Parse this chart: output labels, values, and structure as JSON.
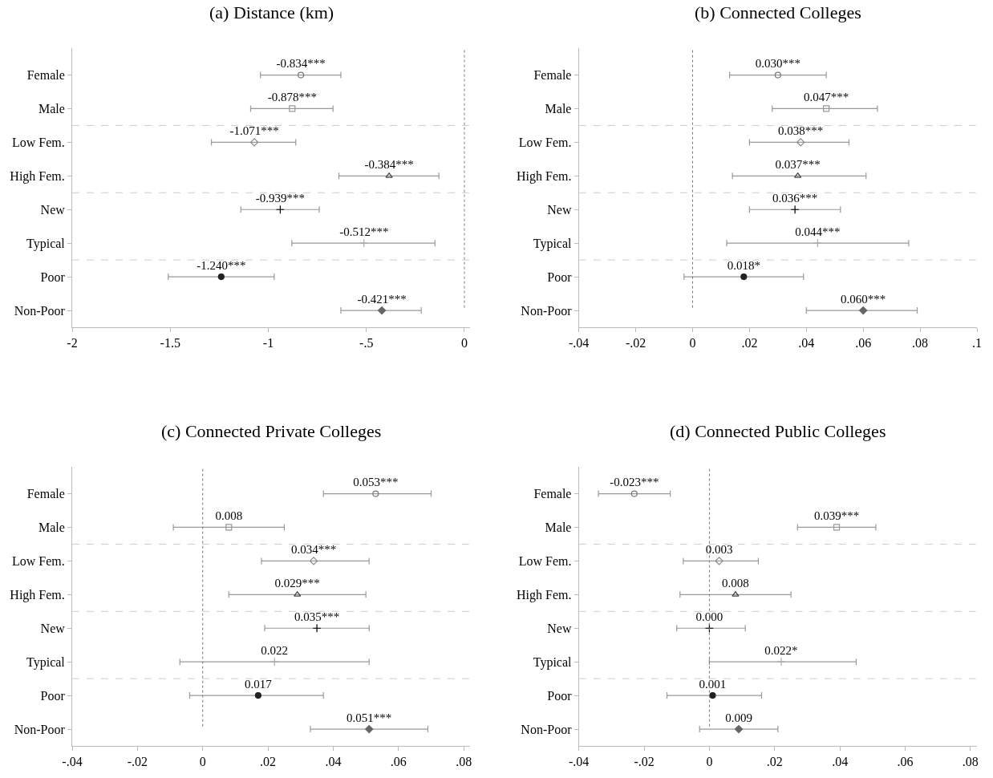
{
  "chart_data": [
    {
      "type": "scatter",
      "orientation": "horizontal",
      "title": "(a) Distance (km)",
      "categories": [
        "Female",
        "Male",
        "Low Fem.",
        "High Fem.",
        "New",
        "Typical",
        "Poor",
        "Non-Poor"
      ],
      "series": [
        {
          "colors": [
            "#777777",
            "#999999",
            "#888888",
            "#444444",
            "#000000",
            "#aaaaaa",
            "#222222",
            "#666666"
          ],
          "values": [
            -0.834,
            -0.878,
            -1.071,
            -0.384,
            -0.939,
            -0.512,
            -1.24,
            -0.421
          ],
          "errors": [
            [
              -1.04,
              -0.63
            ],
            [
              -1.09,
              -0.67
            ],
            [
              -1.29,
              -0.86
            ],
            [
              -0.64,
              -0.13
            ],
            [
              -1.14,
              -0.74
            ],
            [
              -0.88,
              -0.15
            ],
            [
              -1.51,
              -0.97
            ],
            [
              -0.63,
              -0.22
            ]
          ],
          "value_labels": [
            "-0.834***",
            "-0.878***",
            "-1.071***",
            "-0.384***",
            "-0.939***",
            "-0.512***",
            "-1.240***",
            "-0.421***"
          ]
        }
      ],
      "marker": [
        "circle",
        "square",
        "diamond",
        "triangle",
        "cross",
        "cross",
        "circle",
        "diamond"
      ],
      "xlim": [
        -2,
        0.03
      ],
      "xticks": [
        -2,
        -1.5,
        -1,
        {
          "value": -0.5,
          "label": "-.5"
        },
        0
      ],
      "ref_lines": [
        {
          "axis": "x",
          "value": 0,
          "color": "#777777",
          "line_style": "dotted"
        }
      ]
    },
    {
      "type": "scatter",
      "orientation": "horizontal",
      "title": "(b) Connected Colleges",
      "categories": [
        "Female",
        "Male",
        "Low Fem.",
        "High Fem.",
        "New",
        "Typical",
        "Poor",
        "Non-Poor"
      ],
      "series": [
        {
          "colors": [
            "#777777",
            "#999999",
            "#888888",
            "#444444",
            "#000000",
            "#aaaaaa",
            "#222222",
            "#666666"
          ],
          "values": [
            0.03,
            0.047,
            0.038,
            0.037,
            0.036,
            0.044,
            0.018,
            0.06
          ],
          "errors": [
            [
              0.013,
              0.047
            ],
            [
              0.028,
              0.065
            ],
            [
              0.02,
              0.055
            ],
            [
              0.014,
              0.061
            ],
            [
              0.02,
              0.052
            ],
            [
              0.012,
              0.076
            ],
            [
              -0.003,
              0.039
            ],
            [
              0.04,
              0.079
            ]
          ],
          "value_labels": [
            "0.030***",
            "0.047***",
            "0.038***",
            "0.037***",
            "0.036***",
            "0.044***",
            "0.018*",
            "0.060***"
          ]
        }
      ],
      "marker": [
        "circle",
        "square",
        "diamond",
        "triangle",
        "cross",
        "cross",
        "circle",
        "diamond"
      ],
      "xlim": [
        -0.04,
        0.1
      ],
      "xticks": [
        {
          "value": -0.04,
          "label": "-.04"
        },
        {
          "value": -0.02,
          "label": "-.02"
        },
        0,
        {
          "value": 0.02,
          "label": ".02"
        },
        {
          "value": 0.04,
          "label": ".04"
        },
        {
          "value": 0.06,
          "label": ".06"
        },
        {
          "value": 0.08,
          "label": ".08"
        },
        {
          "value": 0.1,
          "label": ".1"
        }
      ],
      "ref_lines": [
        {
          "axis": "x",
          "value": 0,
          "color": "#777777",
          "line_style": "dotted"
        }
      ]
    },
    {
      "type": "scatter",
      "orientation": "horizontal",
      "title": "(c) Connected Private Colleges",
      "categories": [
        "Female",
        "Male",
        "Low Fem.",
        "High Fem.",
        "New",
        "Typical",
        "Poor",
        "Non-Poor"
      ],
      "series": [
        {
          "colors": [
            "#777777",
            "#999999",
            "#888888",
            "#444444",
            "#000000",
            "#aaaaaa",
            "#222222",
            "#666666"
          ],
          "values": [
            0.053,
            0.008,
            0.034,
            0.029,
            0.035,
            0.022,
            0.017,
            0.051
          ],
          "errors": [
            [
              0.037,
              0.07
            ],
            [
              -0.009,
              0.025
            ],
            [
              0.018,
              0.051
            ],
            [
              0.008,
              0.05
            ],
            [
              0.019,
              0.051
            ],
            [
              -0.007,
              0.051
            ],
            [
              -0.004,
              0.037
            ],
            [
              0.033,
              0.069
            ]
          ],
          "value_labels": [
            "0.053***",
            "0.008",
            "0.034***",
            "0.029***",
            "0.035***",
            "0.022",
            "0.017",
            "0.051***"
          ]
        }
      ],
      "marker": [
        "circle",
        "square",
        "diamond",
        "triangle",
        "cross",
        "cross",
        "circle",
        "diamond"
      ],
      "xlim": [
        -0.04,
        0.082
      ],
      "xticks": [
        {
          "value": -0.04,
          "label": "-.04"
        },
        {
          "value": -0.02,
          "label": "-.02"
        },
        0,
        {
          "value": 0.02,
          "label": ".02"
        },
        {
          "value": 0.04,
          "label": ".04"
        },
        {
          "value": 0.06,
          "label": ".06"
        },
        {
          "value": 0.08,
          "label": ".08"
        }
      ],
      "ref_lines": [
        {
          "axis": "x",
          "value": 0,
          "color": "#777777",
          "line_style": "dotted"
        }
      ]
    },
    {
      "type": "scatter",
      "orientation": "horizontal",
      "title": "(d) Connected Public Colleges",
      "categories": [
        "Female",
        "Male",
        "Low Fem.",
        "High Fem.",
        "New",
        "Typical",
        "Poor",
        "Non-Poor"
      ],
      "series": [
        {
          "colors": [
            "#777777",
            "#999999",
            "#888888",
            "#444444",
            "#000000",
            "#aaaaaa",
            "#222222",
            "#666666"
          ],
          "values": [
            -0.023,
            0.039,
            0.003,
            0.008,
            0.0,
            0.022,
            0.001,
            0.009
          ],
          "errors": [
            [
              -0.034,
              -0.012
            ],
            [
              0.027,
              0.051
            ],
            [
              -0.008,
              0.015
            ],
            [
              -0.009,
              0.025
            ],
            [
              -0.01,
              0.011
            ],
            [
              0.0,
              0.045
            ],
            [
              -0.013,
              0.016
            ],
            [
              -0.003,
              0.021
            ]
          ],
          "value_labels": [
            "-0.023***",
            "0.039***",
            "0.003",
            "0.008",
            "0.000",
            "0.022*",
            "0.001",
            "0.009"
          ]
        }
      ],
      "marker": [
        "circle",
        "square",
        "diamond",
        "triangle",
        "cross",
        "cross",
        "circle",
        "diamond"
      ],
      "xlim": [
        -0.04,
        0.082
      ],
      "xticks": [
        {
          "value": -0.04,
          "label": "-.04"
        },
        {
          "value": -0.02,
          "label": "-.02"
        },
        0,
        {
          "value": 0.02,
          "label": ".02"
        },
        {
          "value": 0.04,
          "label": ".04"
        },
        {
          "value": 0.06,
          "label": ".06"
        },
        {
          "value": 0.08,
          "label": ".08"
        }
      ],
      "ref_lines": [
        {
          "axis": "x",
          "value": 0,
          "color": "#777777",
          "line_style": "dotted"
        }
      ]
    }
  ]
}
